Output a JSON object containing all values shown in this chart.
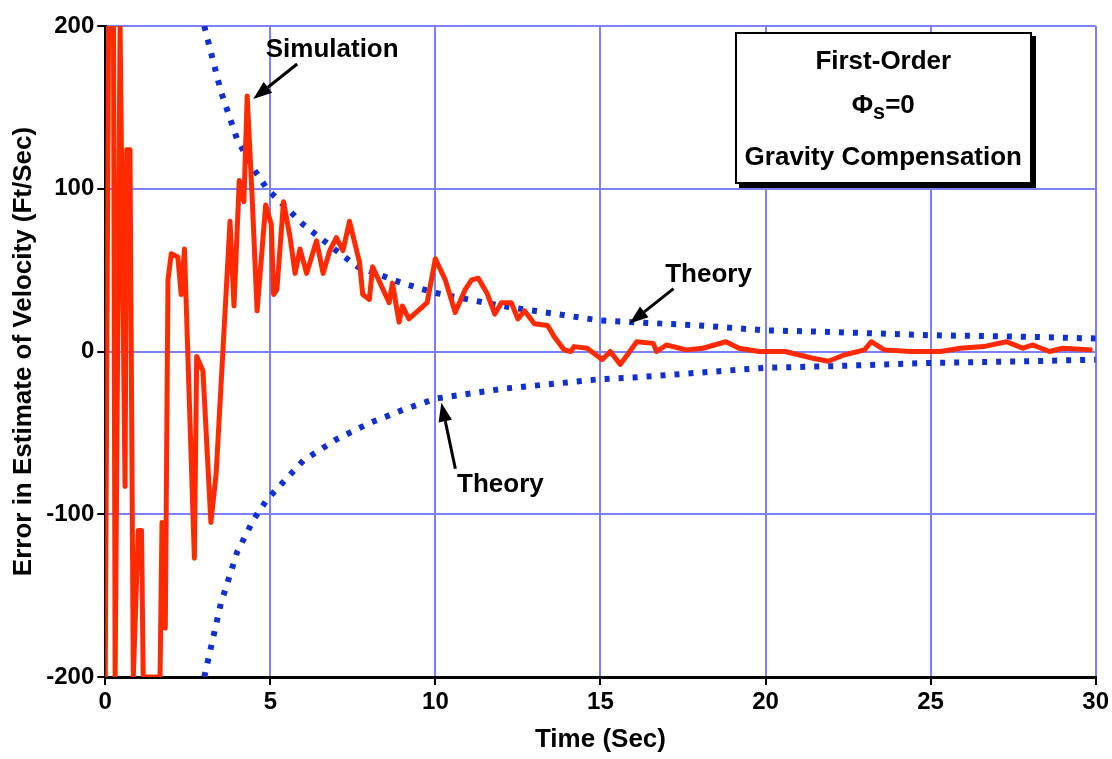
{
  "chart_data": {
    "type": "line",
    "xlabel": "Time (Sec)",
    "ylabel": "Error in Estimate of Velocity (Ft/Sec)",
    "xlim": [
      0,
      30
    ],
    "xticks": [
      0,
      5,
      10,
      15,
      20,
      25,
      30
    ],
    "ylim": [
      -200,
      200
    ],
    "yticks": [
      -200,
      -100,
      0,
      100,
      200
    ],
    "grid": true,
    "marker": "none",
    "annotations": [
      {
        "text": "Simulation",
        "x": 4.3,
        "y": 157
      },
      {
        "text": "Theory",
        "x": 15.7,
        "y": 19
      },
      {
        "text": "Theory",
        "x": 10,
        "y": -29
      },
      "First-Order",
      "Φ$_{s}$=0",
      "Gravity Compensation"
    ],
    "series": [
      {
        "color": "#ff2a00",
        "line_style": "solid",
        "x": [
          0,
          0.1,
          0.25,
          0.3,
          0.45,
          0.6,
          0.65,
          0.75,
          0.85,
          1.0,
          1.1,
          1.15,
          1.66,
          1.72,
          1.82,
          1.9,
          2.0,
          2.2,
          2.3,
          2.4,
          2.7,
          2.77,
          2.96,
          3.2,
          3.36,
          3.78,
          3.9,
          4.06,
          4.2,
          4.3,
          4.45,
          4.6,
          4.86,
          5.03,
          5.1,
          5.2,
          5.4,
          5.6,
          5.75,
          5.9,
          6.1,
          6.4,
          6.6,
          6.8,
          7.0,
          7.2,
          7.4,
          7.7,
          7.8,
          8.0,
          8.1,
          8.6,
          8.7,
          8.9,
          9.0,
          9.2,
          9.75,
          10.0,
          10.3,
          10.6,
          10.9,
          11.1,
          11.3,
          11.56,
          11.8,
          12.0,
          12.3,
          12.5,
          12.7,
          13.0,
          13.4,
          13.6,
          13.9,
          14.1,
          14.2,
          14.6,
          15.05,
          15.3,
          15.6,
          16.1,
          16.6,
          16.7,
          17.0,
          17.6,
          18.1,
          18.8,
          19.2,
          19.8,
          20.6,
          21.4,
          21.9,
          22.4,
          23.0,
          23.2,
          23.6,
          24.4,
          25.3,
          25.9,
          26.6,
          27.3,
          27.8,
          28.1,
          28.6,
          29.0,
          29.9
        ],
        "values": [
          -200,
          200,
          200,
          -200,
          200,
          -83,
          124,
          124,
          -200,
          -110,
          -110,
          -200,
          -200,
          -105,
          -170,
          44,
          60,
          58,
          35,
          63,
          -127,
          -3,
          -12,
          -105,
          -75,
          80,
          28,
          105,
          92,
          157,
          95,
          25,
          90,
          78,
          35,
          38,
          92,
          70,
          48,
          63,
          48,
          68,
          48,
          62,
          70,
          62,
          80,
          55,
          35,
          32,
          52,
          30,
          42,
          18,
          28,
          20,
          30,
          57,
          44,
          24,
          38,
          44,
          45,
          36,
          23,
          30,
          30,
          20,
          25,
          17,
          16,
          9,
          1,
          0,
          3,
          2,
          -5,
          0,
          -8,
          6,
          5,
          0,
          4,
          1,
          2,
          6,
          2,
          0,
          0,
          -4,
          -6,
          -2,
          1,
          6,
          1,
          0,
          0,
          2,
          3,
          6,
          2,
          4,
          0,
          2,
          1
        ]
      },
      {
        "color": "#1030d0",
        "line_style": "dotted",
        "x": [
          3,
          3.5,
          4,
          4.5,
          4.9,
          6,
          7,
          7.65,
          9,
          10,
          11,
          12,
          13,
          14,
          15,
          16,
          18,
          20,
          22,
          25,
          28,
          30
        ],
        "values": [
          200,
          160,
          130,
          112,
          100,
          78,
          62,
          52,
          42,
          36,
          32,
          28,
          25,
          22,
          19,
          18,
          16,
          13,
          12,
          10,
          9,
          8
        ]
      },
      {
        "color": "#1030d0",
        "line_style": "dotted",
        "x": [
          3,
          3.5,
          4,
          4.5,
          4.9,
          6,
          7,
          8,
          9,
          10,
          11,
          12,
          13,
          14,
          15,
          16,
          18,
          20,
          22,
          25,
          28,
          30
        ],
        "values": [
          -200,
          -155,
          -123,
          -103,
          -91,
          -67,
          -54,
          -44,
          -36,
          -29,
          -26,
          -23,
          -21,
          -19,
          -17,
          -16,
          -13,
          -10,
          -9,
          -7,
          -6,
          -5
        ]
      }
    ]
  }
}
